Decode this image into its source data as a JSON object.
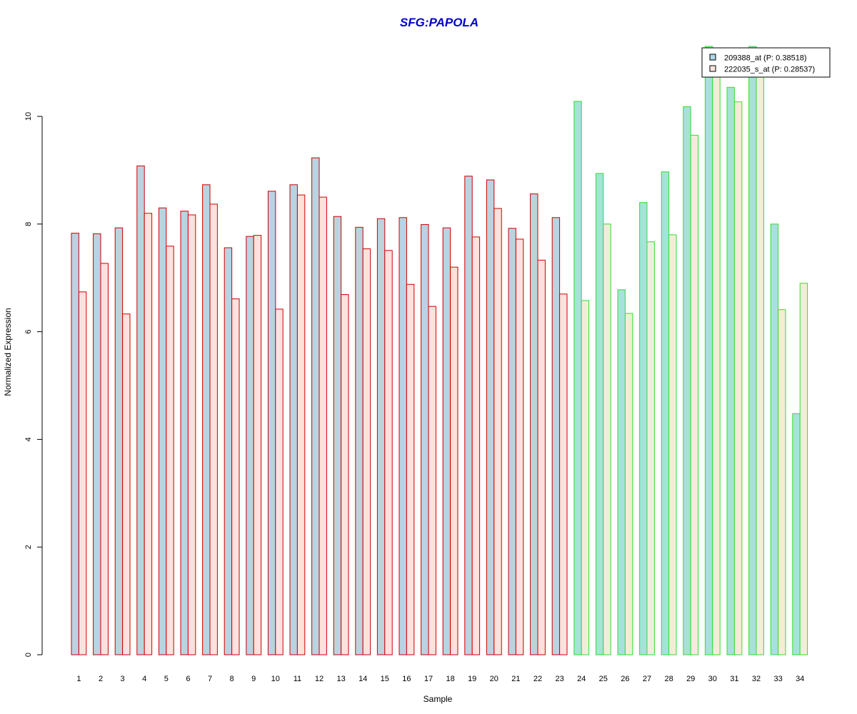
{
  "chart_data": {
    "type": "bar",
    "title": "SFG:PAPOLA",
    "title_color": "#0000CC",
    "xlabel": "Sample",
    "ylabel": "Normalized Expression",
    "ylim": [
      0,
      11.3
    ],
    "yticks": [
      0,
      2,
      4,
      6,
      8,
      10
    ],
    "grid": false,
    "legend_position": "top-right",
    "categories": [
      "1",
      "2",
      "3",
      "4",
      "5",
      "6",
      "7",
      "8",
      "9",
      "10",
      "11",
      "12",
      "13",
      "14",
      "15",
      "16",
      "17",
      "18",
      "19",
      "20",
      "21",
      "22",
      "23",
      "24",
      "25",
      "26",
      "27",
      "28",
      "29",
      "30",
      "31",
      "32",
      "33",
      "34"
    ],
    "group_border_colors": [
      "#CC0000",
      "#CC0000",
      "#CC0000",
      "#CC0000",
      "#CC0000",
      "#CC0000",
      "#CC0000",
      "#CC0000",
      "#CC0000",
      "#CC0000",
      "#CC0000",
      "#CC0000",
      "#CC0000",
      "#CC0000",
      "#CC0000",
      "#CC0000",
      "#CC0000",
      "#CC0000",
      "#CC0000",
      "#CC0000",
      "#CC0000",
      "#CC0000",
      "#CC0000",
      "#33DD33",
      "#33DD33",
      "#33DD33",
      "#33DD33",
      "#33DD33",
      "#33DD33",
      "#33DD33",
      "#33DD33",
      "#33DD33",
      "#33DD33",
      "#33DD33"
    ],
    "series": [
      {
        "name": "209388_at (P: 0.38518)",
        "legend_color": "#ADD8E6",
        "fill_colors": {
          "#CC0000": "#B9D3E1",
          "#33DD33": "#A4E3D8"
        },
        "values": [
          7.83,
          7.82,
          7.93,
          9.08,
          8.3,
          8.24,
          8.73,
          7.56,
          7.77,
          8.61,
          8.73,
          9.23,
          8.14,
          7.94,
          8.1,
          8.12,
          7.99,
          7.93,
          8.89,
          8.82,
          7.92,
          8.56,
          8.12,
          10.28,
          8.94,
          6.78,
          8.4,
          8.97,
          10.18,
          11.3,
          10.54,
          11.3,
          8.0,
          4.48
        ]
      },
      {
        "name": "222035_s_at (P: 0.28537)",
        "legend_color": "#FFE4E1",
        "fill_colors": {
          "#CC0000": "#FDE1DE",
          "#33DD33": "#F0EED8"
        },
        "values": [
          6.74,
          7.27,
          6.33,
          8.2,
          7.59,
          8.17,
          8.37,
          6.61,
          7.79,
          6.42,
          8.54,
          8.5,
          6.69,
          7.54,
          7.51,
          6.88,
          6.47,
          7.2,
          7.76,
          8.29,
          7.72,
          7.33,
          6.7,
          6.58,
          8.0,
          6.34,
          7.67,
          7.8,
          9.65,
          11.0,
          10.27,
          11.0,
          6.41,
          6.9
        ]
      }
    ]
  }
}
